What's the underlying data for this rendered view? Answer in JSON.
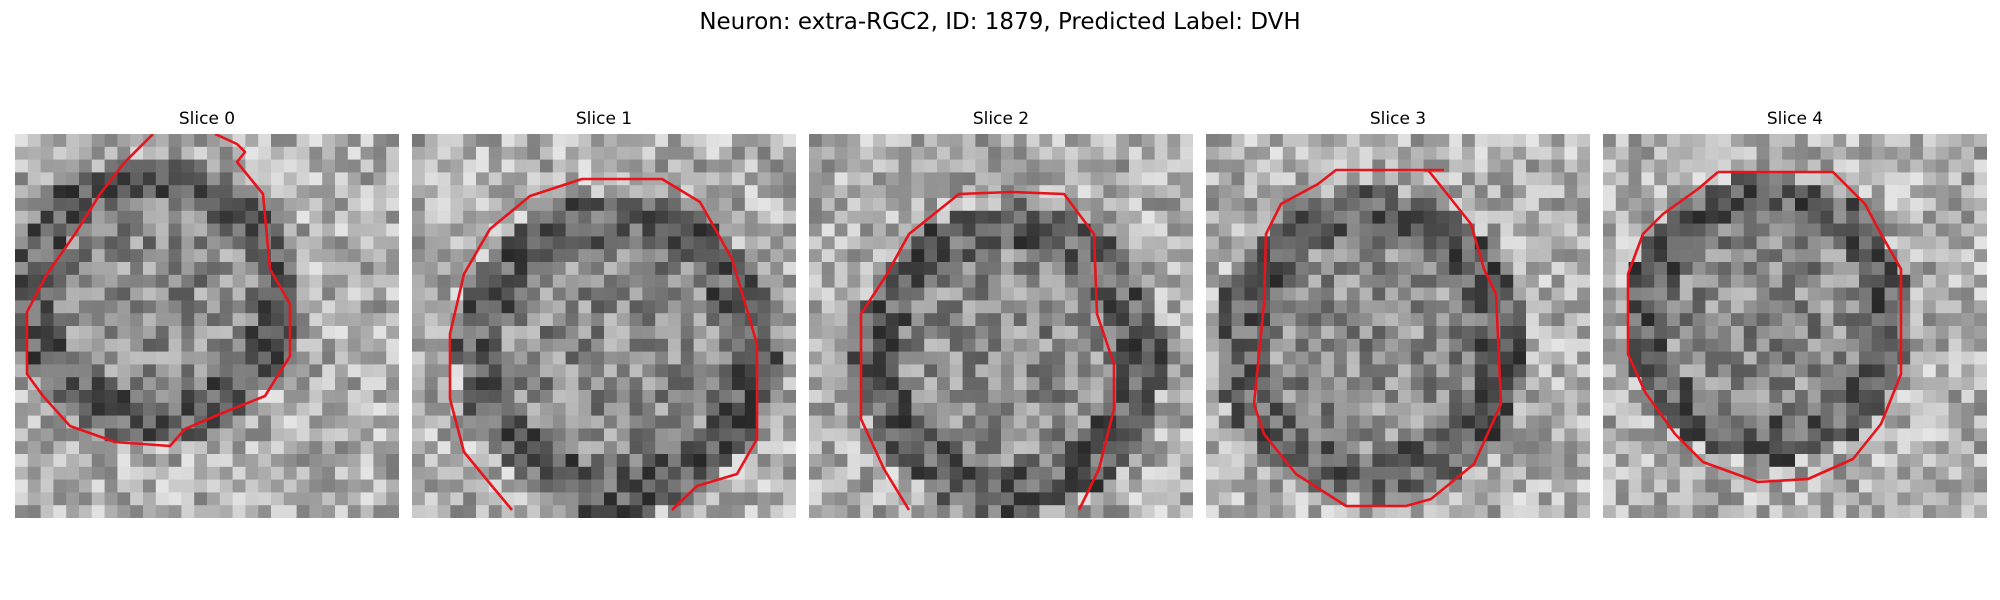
{
  "figure": {
    "title": "Neuron: extra-RGC2, ID: 1879, Predicted Label: DVH"
  },
  "panels": [
    {
      "title": "Slice 0"
    },
    {
      "title": "Slice 1"
    },
    {
      "title": "Slice 2"
    },
    {
      "title": "Slice 3"
    },
    {
      "title": "Slice 4"
    }
  ],
  "colors": {
    "contour": "#e8141c",
    "background": "#ffffff",
    "colormap": "gray"
  }
}
